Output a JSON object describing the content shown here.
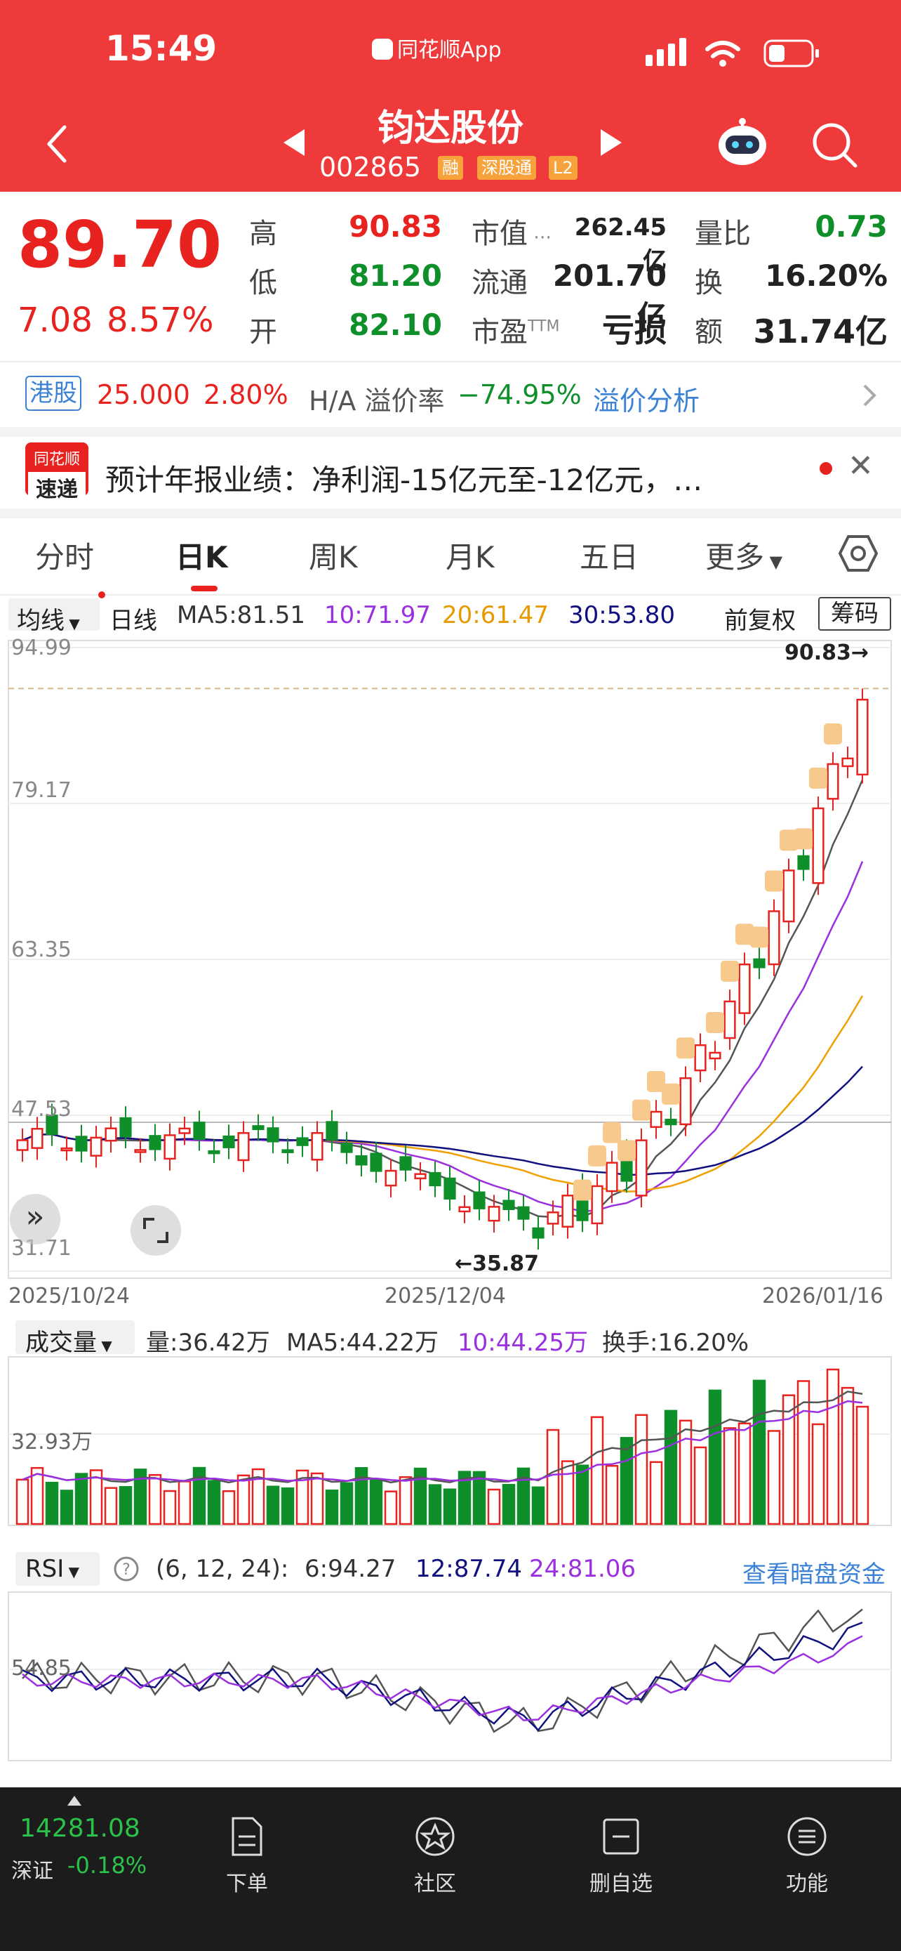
{
  "status": {
    "time": "15:49",
    "app": "同花顺App"
  },
  "header": {
    "stock_name": "钧达股份",
    "stock_code": "002865",
    "tags": [
      "融",
      "深股通",
      "L2"
    ]
  },
  "quote": {
    "price": "89.70",
    "change": "7.08",
    "change_pct": "8.57%",
    "high_label": "高",
    "high": "90.83",
    "low_label": "低",
    "low": "81.20",
    "open_label": "开",
    "open": "82.10",
    "mktcap_label": "市值",
    "mktcap": "262.45亿",
    "float_label": "流通",
    "float": "201.70亿",
    "pe_label": "市盈",
    "pe_sup": "TTM",
    "pe": "亏损",
    "vr_label": "量比",
    "vr": "0.73",
    "turnover_label": "换",
    "turnover": "16.20%",
    "amount_label": "额",
    "amount": "31.74亿"
  },
  "hk": {
    "tag": "港股",
    "price": "25.000",
    "pct": "2.80%",
    "premium_label": "H/A 溢价率",
    "premium": "−74.95%",
    "link": "溢价分析"
  },
  "news": {
    "logo_line1": "同花顺",
    "logo_line2": "速递",
    "text": "预计年报业绩：净利润-15亿元至-12亿元，…"
  },
  "tabs": [
    "分时",
    "日K",
    "周K",
    "月K",
    "五日",
    "更多"
  ],
  "kline_bar": {
    "ind": "均线",
    "kind": "日线",
    "ma5": "MA5:81.51",
    "ma10": "10:71.97",
    "ma20": "20:61.47",
    "ma30": "30:53.80",
    "adjust": "前复权",
    "chips": "筹码"
  },
  "kline": {
    "y_labels": [
      "94.99",
      "79.17",
      "63.35",
      "47.53",
      "31.71"
    ],
    "high_note": "90.83→",
    "low_note": "←35.87",
    "dates": [
      "2025/10/24",
      "2025/12/04",
      "2026/01/16"
    ]
  },
  "volume_bar": {
    "ind": "成交量",
    "vol": "量:36.42万",
    "ma5": "MA5:44.22万",
    "ma10": "10:44.25万",
    "turn": "换手:16.20%",
    "y_label": "32.93万"
  },
  "rsi_bar": {
    "ind": "RSI",
    "params": "(6, 12, 24):",
    "r6": "6:94.27",
    "r12": "12:87.74",
    "r24": "24:81.06",
    "link": "查看暗盘资金",
    "y_label": "54.85"
  },
  "bottom": {
    "index_value": "14281.08",
    "index_name": "深证",
    "index_pct": "-0.18%",
    "nav": [
      "下单",
      "社区",
      "删自选",
      "功能"
    ]
  },
  "chart_data": {
    "type": "candlestick",
    "x_range": [
      "2025/10/24",
      "2026/01/16"
    ],
    "ylim": [
      31.71,
      94.99
    ],
    "y_ticks": [
      94.99,
      79.17,
      63.35,
      47.53,
      31.71
    ],
    "period_high": 90.83,
    "period_low": 35.87,
    "last": {
      "close": 89.7,
      "open": 82.1,
      "high": 90.83,
      "low": 81.2
    },
    "moving_averages": {
      "MA5": 81.51,
      "MA10": 71.97,
      "MA20": 61.47,
      "MA30": 53.8
    },
    "volume": {
      "last": "36.42万",
      "MA5": "44.22万",
      "MA10": "44.25万",
      "ref_line": "32.93万"
    },
    "rsi": {
      "RSI6": 94.27,
      "RSI12": 87.74,
      "RSI24": 81.06,
      "ref_line": 54.85
    }
  },
  "colors": {
    "header": "#ee3a3a",
    "up": "#e8231f",
    "down": "#0f8f2a",
    "ma10": "#9b30e0",
    "ma20": "#f0a000",
    "ma30": "#101080",
    "bottom_bg": "#1c1c1c"
  }
}
